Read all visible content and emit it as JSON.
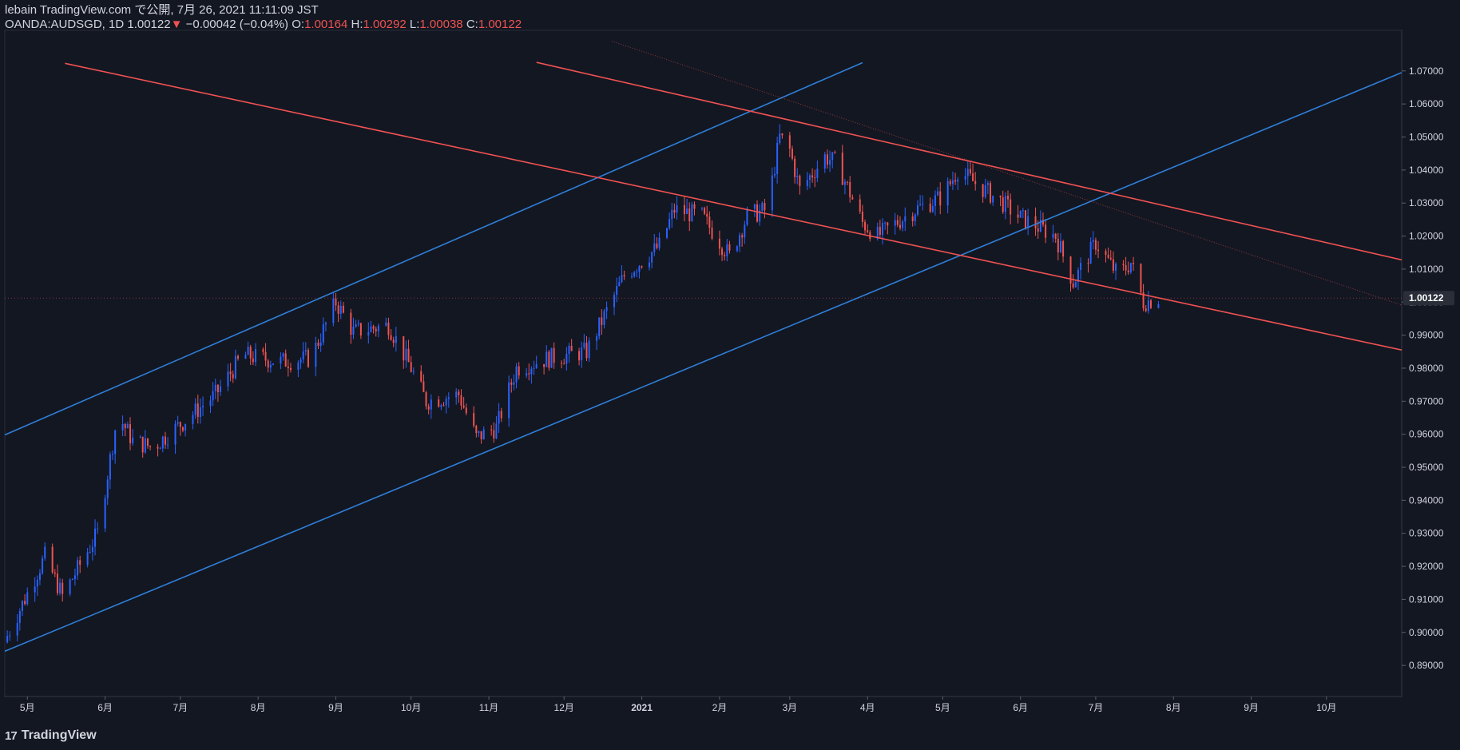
{
  "header": {
    "publish_line": "lebain TradingView.com で公開, 7月 26, 2021 11:11:09 JST",
    "symbol_info": "OANDA:AUDSGD, 1D 1.00122",
    "change": "−0.00042 (−0.04%)",
    "open_label": "O:",
    "open_value": "1.00164",
    "high_label": "H:",
    "high_value": "1.00292",
    "low_label": "L:",
    "low_value": "1.00038",
    "close_label": "C:",
    "close_value": "1.00122"
  },
  "footer": {
    "logo_text": "TradingView",
    "logo_mark": "17"
  },
  "colors": {
    "background": "#131722",
    "up": "#2962ff",
    "down": "#ef5350",
    "blue_channel": "#2f7fd8",
    "red_channel": "#f05252",
    "text": "#d1d4dc"
  },
  "chart_data": {
    "type": "candlestick",
    "symbol": "OANDA:AUDSGD",
    "interval": "1D",
    "last_price": "1.00122",
    "x_range": [
      "2020-04-22",
      "2021-10-31"
    ],
    "y_range": [
      0.8806,
      1.0818
    ],
    "y_ticks": [
      "1.07000",
      "1.06000",
      "1.05000",
      "1.04000",
      "1.03000",
      "1.02000",
      "1.01000",
      "1.00000",
      "0.99000",
      "0.98000",
      "0.97000",
      "0.96000",
      "0.95000",
      "0.94000",
      "0.93000",
      "0.92000",
      "0.91000",
      "0.90000",
      "0.89000"
    ],
    "x_ticks": [
      {
        "label": "5月",
        "date": "2020-05-01"
      },
      {
        "label": "6月",
        "date": "2020-06-01"
      },
      {
        "label": "7月",
        "date": "2020-07-01"
      },
      {
        "label": "8月",
        "date": "2020-08-01"
      },
      {
        "label": "9月",
        "date": "2020-09-01"
      },
      {
        "label": "10月",
        "date": "2020-10-01"
      },
      {
        "label": "11月",
        "date": "2020-11-01"
      },
      {
        "label": "12月",
        "date": "2020-12-01"
      },
      {
        "label": "2021",
        "date": "2021-01-01"
      },
      {
        "label": "2月",
        "date": "2021-02-01"
      },
      {
        "label": "3月",
        "date": "2021-03-01"
      },
      {
        "label": "4月",
        "date": "2021-04-01"
      },
      {
        "label": "5月",
        "date": "2021-05-01"
      },
      {
        "label": "6月",
        "date": "2021-06-01"
      },
      {
        "label": "7月",
        "date": "2021-07-01"
      },
      {
        "label": "8月",
        "date": "2021-08-01"
      },
      {
        "label": "9月",
        "date": "2021-09-01"
      },
      {
        "label": "10月",
        "date": "2021-10-01"
      }
    ],
    "close_path": [
      [
        "2020-04-23",
        0.899
      ],
      [
        "2020-05-08",
        0.923
      ],
      [
        "2020-05-15",
        0.911
      ],
      [
        "2020-05-29",
        0.93
      ],
      [
        "2020-06-06",
        0.966
      ],
      [
        "2020-06-12",
        0.958
      ],
      [
        "2020-06-20",
        0.956
      ],
      [
        "2020-07-01",
        0.963
      ],
      [
        "2020-07-15",
        0.972
      ],
      [
        "2020-07-26",
        0.984
      ],
      [
        "2020-08-10",
        0.982
      ],
      [
        "2020-08-22",
        0.983
      ],
      [
        "2020-09-01",
        1.0
      ],
      [
        "2020-09-08",
        0.991
      ],
      [
        "2020-09-22",
        0.993
      ],
      [
        "2020-10-01",
        0.98
      ],
      [
        "2020-10-07",
        0.97
      ],
      [
        "2020-10-20",
        0.972
      ],
      [
        "2020-10-27",
        0.959
      ],
      [
        "2020-11-04",
        0.962
      ],
      [
        "2020-11-12",
        0.98
      ],
      [
        "2020-11-25",
        0.983
      ],
      [
        "2020-12-10",
        0.985
      ],
      [
        "2020-12-25",
        1.008
      ],
      [
        "2021-01-08",
        1.017
      ],
      [
        "2021-01-14",
        1.028
      ],
      [
        "2021-01-25",
        1.026
      ],
      [
        "2021-02-05",
        1.014
      ],
      [
        "2021-02-12",
        1.026
      ],
      [
        "2021-02-20",
        1.028
      ],
      [
        "2021-02-25",
        1.05
      ],
      [
        "2021-03-01",
        1.046
      ],
      [
        "2021-03-05",
        1.034
      ],
      [
        "2021-03-15",
        1.044
      ],
      [
        "2021-03-20",
        1.042
      ],
      [
        "2021-03-30",
        1.024
      ],
      [
        "2021-04-05",
        1.02
      ],
      [
        "2021-04-20",
        1.028
      ],
      [
        "2021-05-01",
        1.032
      ],
      [
        "2021-05-07",
        1.04
      ],
      [
        "2021-05-14",
        1.036
      ],
      [
        "2021-05-25",
        1.03
      ],
      [
        "2021-05-31",
        1.026
      ],
      [
        "2021-06-15",
        1.02
      ],
      [
        "2021-06-22",
        1.006
      ],
      [
        "2021-07-01",
        1.018
      ],
      [
        "2021-07-10",
        1.008
      ],
      [
        "2021-07-15",
        1.012
      ],
      [
        "2021-07-20",
        1.0
      ],
      [
        "2021-07-26",
        1.0012
      ]
    ],
    "drawings": [
      {
        "name": "blue-channel-upper",
        "color": "blue",
        "p1": [
          "2020-04-22",
          0.9598
        ],
        "p2": [
          "2021-03-30",
          1.0725
        ]
      },
      {
        "name": "blue-channel-lower",
        "color": "blue",
        "p1": [
          "2020-04-22",
          0.8943
        ],
        "p2": [
          "2021-10-31",
          1.0695
        ]
      },
      {
        "name": "red-channel-upper",
        "color": "red",
        "p1": [
          "2020-11-20",
          1.0726
        ],
        "p2": [
          "2021-10-31",
          1.0128
        ]
      },
      {
        "name": "red-channel-lower",
        "color": "red",
        "p1": [
          "2020-05-16",
          1.0723
        ],
        "p2": [
          "2021-10-31",
          0.9855
        ]
      }
    ],
    "midline": {
      "p1": [
        "2020-12-20",
        1.079
      ],
      "p2": [
        "2021-10-31",
        0.9991
      ]
    }
  }
}
